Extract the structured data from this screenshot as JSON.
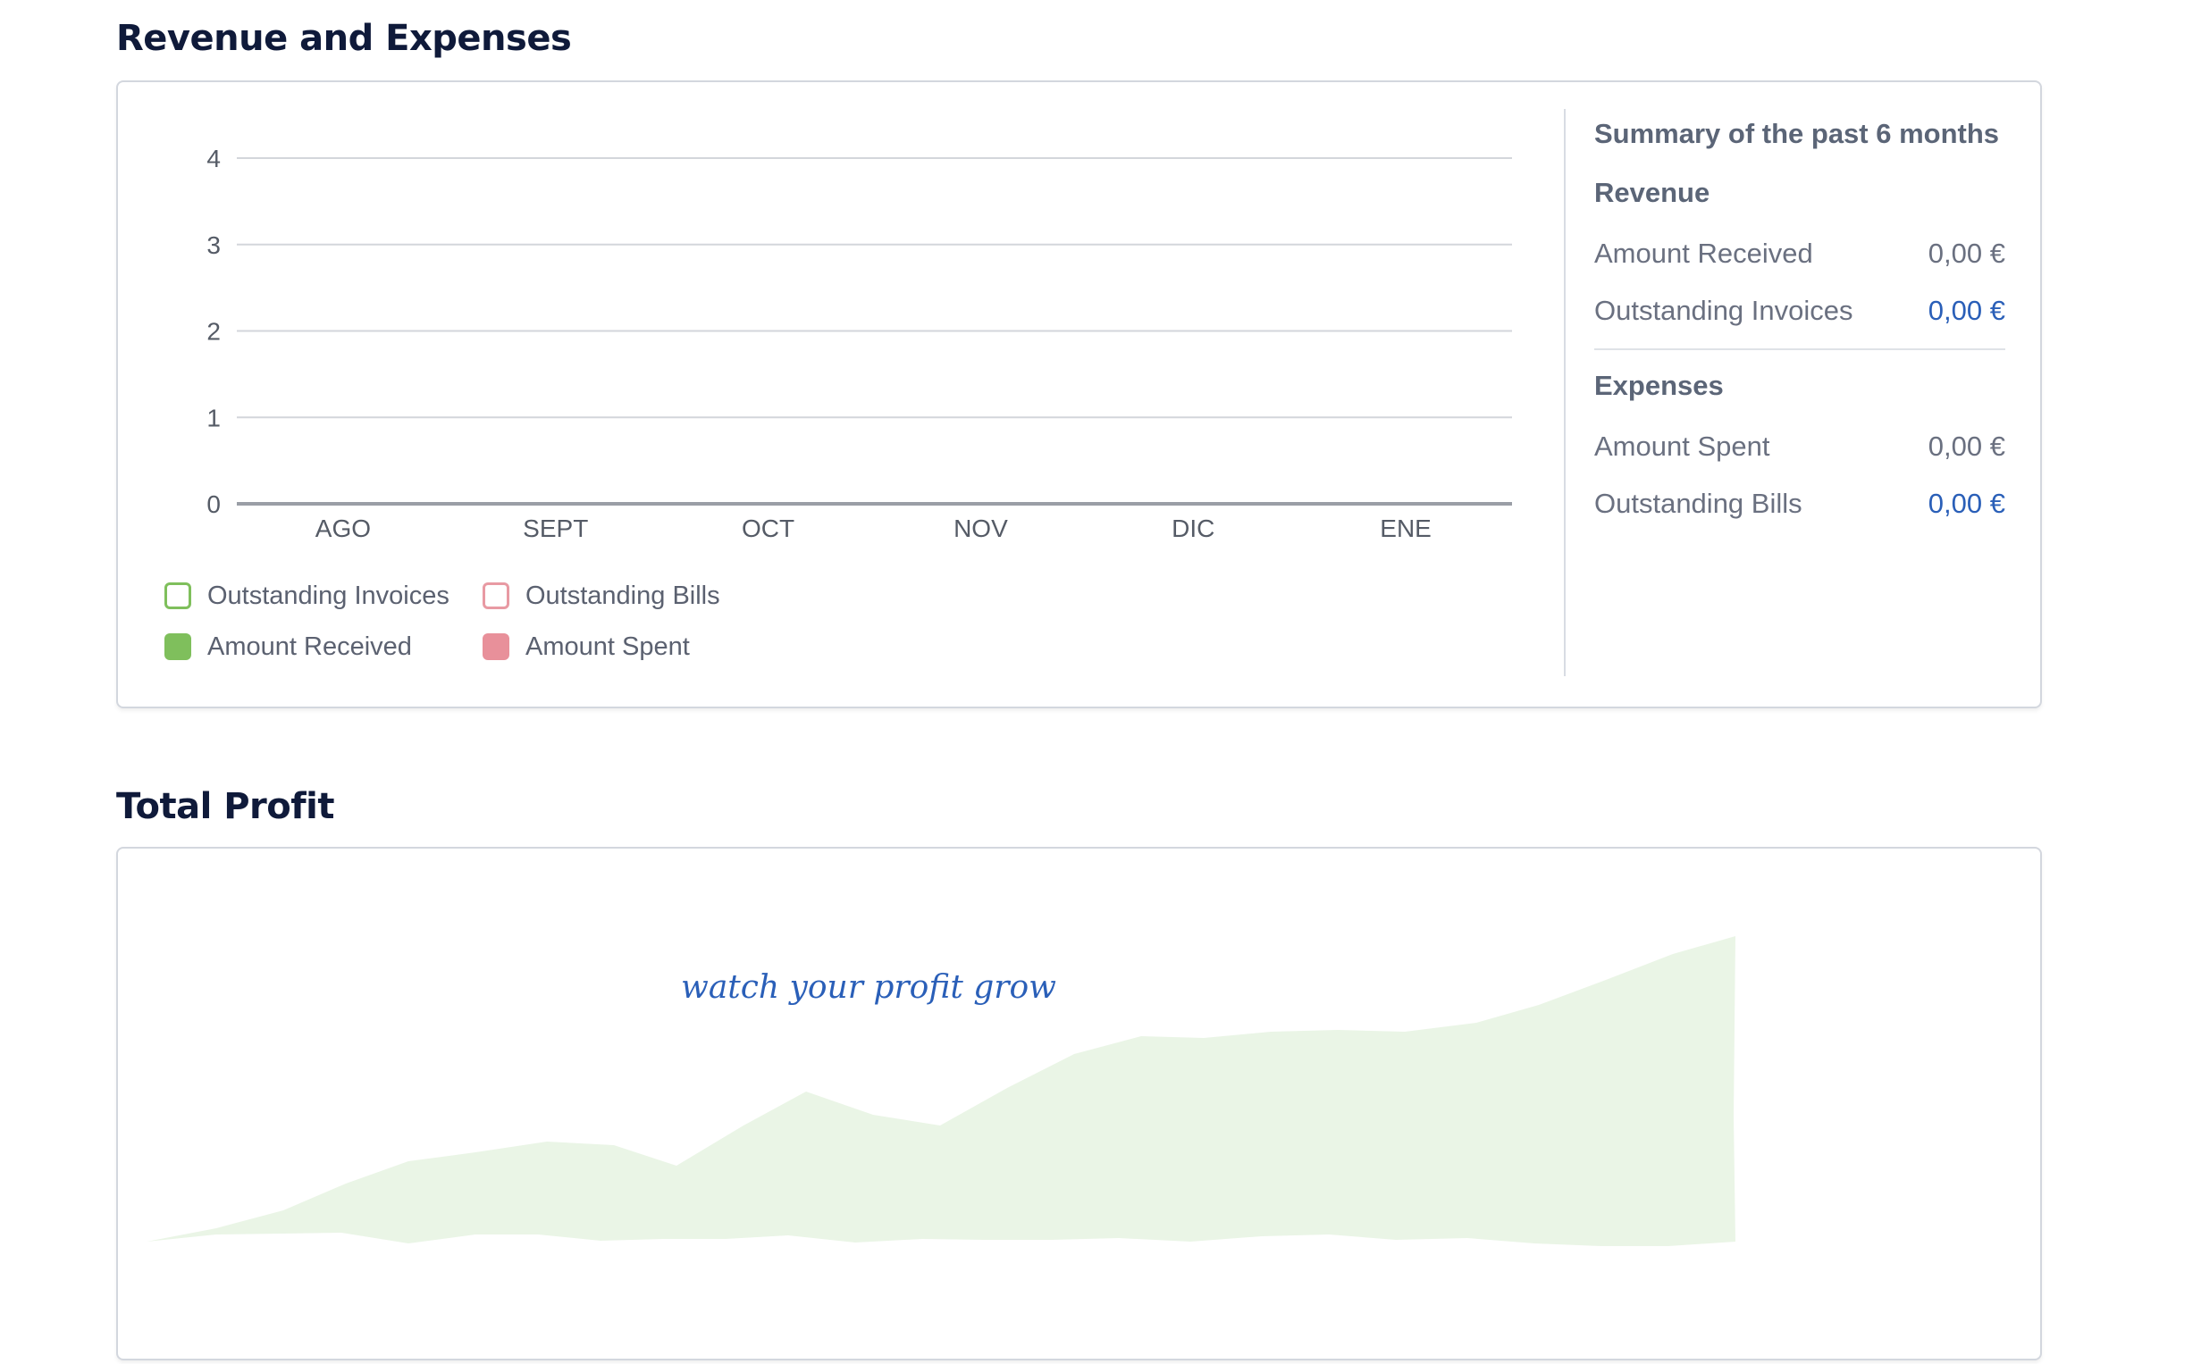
{
  "revenue_section": {
    "title": "Revenue and Expenses"
  },
  "chart_data": {
    "type": "bar",
    "categories": [
      "AGO",
      "SEPT",
      "OCT",
      "NOV",
      "DIC",
      "ENE"
    ],
    "series": [
      {
        "name": "Outstanding Invoices",
        "values": [
          0,
          0,
          0,
          0,
          0,
          0
        ],
        "color": "#7fbf5c"
      },
      {
        "name": "Amount Received",
        "values": [
          0,
          0,
          0,
          0,
          0,
          0
        ],
        "color": "#7fbf5c"
      },
      {
        "name": "Outstanding Bills",
        "values": [
          0,
          0,
          0,
          0,
          0,
          0
        ],
        "color": "#e89aa3"
      },
      {
        "name": "Amount Spent",
        "values": [
          0,
          0,
          0,
          0,
          0,
          0
        ],
        "color": "#e8909a"
      }
    ],
    "y_ticks": [
      "0",
      "1",
      "2",
      "3",
      "4"
    ],
    "ylim": [
      0,
      4
    ],
    "grid": true,
    "legend_position": "bottom-left"
  },
  "legend": {
    "outstanding_invoices": "Outstanding Invoices",
    "outstanding_bills": "Outstanding Bills",
    "amount_received": "Amount Received",
    "amount_spent": "Amount Spent"
  },
  "summary": {
    "heading": "Summary of the past 6 months",
    "revenue": {
      "title": "Revenue",
      "amount_received_label": "Amount Received",
      "amount_received_value": "0,00 €",
      "outstanding_invoices_label": "Outstanding Invoices",
      "outstanding_invoices_value": "0,00 €"
    },
    "expenses": {
      "title": "Expenses",
      "amount_spent_label": "Amount Spent",
      "amount_spent_value": "0,00 €",
      "outstanding_bills_label": "Outstanding Bills",
      "outstanding_bills_value": "0,00 €"
    }
  },
  "profit_section": {
    "title": "Total Profit",
    "caption": "watch your profit grow",
    "fill_color": "#eaf5e6"
  }
}
